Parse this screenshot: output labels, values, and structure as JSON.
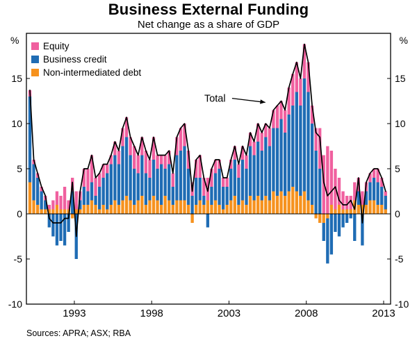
{
  "title": "Business External Funding",
  "subtitle": "Net change as a share of GDP",
  "annotation": {
    "label": "Total"
  },
  "sources": "Sources: APRA; ASX; RBA",
  "axes": {
    "left_unit": "%",
    "right_unit": "%",
    "yticks": [
      -10,
      -5,
      0,
      5,
      10,
      15
    ],
    "ylim": [
      -10,
      20
    ],
    "xticks": [
      1993,
      1998,
      2003,
      2008,
      2013
    ],
    "xtick_labels": [
      "1993",
      "1998",
      "2003",
      "2008",
      "2013"
    ]
  },
  "legend": [
    {
      "label": "Equity",
      "color": "#f0609f"
    },
    {
      "label": "Business credit",
      "color": "#1f6cb4"
    },
    {
      "label": "Non-intermediated debt",
      "color": "#f6921e"
    }
  ],
  "chart_data": {
    "type": "bar",
    "stacked": true,
    "frequency": "quarterly",
    "x_start": 1990.0,
    "x_step": 0.25,
    "xlim": [
      1989.9,
      2013.45
    ],
    "line_overlay": {
      "name": "Total",
      "color": "#000000",
      "note": "sum of stacked series"
    },
    "series": [
      {
        "name": "Equity",
        "color": "#f0609f",
        "values": [
          0.7,
          0.5,
          0.5,
          0.5,
          0.5,
          0.5,
          1.0,
          1.5,
          1.5,
          2.5,
          1.0,
          1.5,
          2.0,
          1.0,
          2.0,
          2.5,
          3.0,
          2.0,
          1.5,
          1.5,
          1.0,
          1.0,
          1.5,
          1.5,
          2.0,
          2.2,
          2.0,
          2.5,
          2.0,
          2.0,
          2.5,
          2.0,
          2.5,
          1.5,
          1.0,
          1.5,
          1.5,
          1.5,
          2.0,
          2.5,
          2.5,
          2.0,
          1.5,
          2.0,
          2.5,
          2.0,
          2.5,
          2.0,
          1.5,
          1.0,
          1.0,
          1.0,
          1.0,
          1.5,
          1.5,
          1.5,
          1.5,
          1.5,
          1.5,
          2.0,
          2.0,
          1.5,
          2.0,
          2.0,
          2.5,
          2.0,
          2.5,
          3.0,
          3.5,
          3.3,
          3.0,
          3.8,
          3.3,
          2.0,
          2.5,
          4.5,
          6.5,
          7.5,
          6.0,
          4.5,
          3.0,
          2.0,
          1.5,
          1.5,
          2.0,
          1.5,
          1.5,
          1.0,
          1.0,
          1.0,
          1.5,
          1.0,
          0.5
        ]
      },
      {
        "name": "Business credit",
        "color": "#1f6cb4",
        "values": [
          9.5,
          4.0,
          3.0,
          2.0,
          1.0,
          -1.5,
          -2.5,
          -3.5,
          -3.0,
          -3.5,
          -2.0,
          2.5,
          -5.0,
          1.0,
          2.0,
          1.5,
          2.0,
          1.0,
          2.5,
          3.0,
          4.0,
          4.5,
          5.0,
          4.5,
          6.0,
          6.5,
          5.0,
          4.0,
          3.0,
          4.5,
          3.5,
          2.5,
          4.0,
          3.5,
          4.5,
          3.0,
          4.0,
          2.0,
          5.0,
          5.5,
          6.0,
          4.0,
          2.0,
          3.0,
          2.5,
          1.0,
          -1.5,
          2.0,
          3.0,
          4.0,
          2.5,
          2.0,
          3.5,
          4.0,
          3.0,
          4.5,
          4.0,
          5.5,
          5.0,
          6.0,
          5.5,
          6.5,
          6.0,
          7.0,
          7.5,
          8.0,
          7.0,
          8.5,
          9.0,
          11.0,
          10.0,
          12.5,
          12.0,
          9.0,
          7.0,
          5.0,
          -2.0,
          -5.0,
          -4.5,
          -2.0,
          -2.5,
          -1.5,
          -1.0,
          -0.5,
          -3.0,
          1.5,
          -3.5,
          1.5,
          2.0,
          2.5,
          2.5,
          2.0,
          1.5
        ]
      },
      {
        "name": "Non-intermediated debt",
        "color": "#f6921e",
        "values": [
          3.5,
          1.5,
          1.0,
          0.5,
          0.5,
          0.5,
          0.5,
          1.0,
          0.5,
          0.5,
          0.5,
          -0.5,
          0.5,
          0.5,
          1.0,
          1.0,
          1.5,
          1.0,
          0.5,
          1.0,
          0.5,
          1.0,
          1.5,
          1.0,
          1.5,
          2.0,
          1.5,
          1.0,
          1.5,
          2.0,
          1.0,
          1.5,
          2.0,
          1.5,
          1.0,
          2.0,
          1.5,
          1.0,
          1.5,
          1.5,
          1.5,
          1.0,
          -1.0,
          1.0,
          1.5,
          1.0,
          1.5,
          1.0,
          1.5,
          1.0,
          0.5,
          1.0,
          1.5,
          2.0,
          1.0,
          1.5,
          1.0,
          2.0,
          1.5,
          2.0,
          1.5,
          2.0,
          1.5,
          2.5,
          2.0,
          2.5,
          2.0,
          2.5,
          3.0,
          2.5,
          2.0,
          2.5,
          1.5,
          1.0,
          -0.5,
          -1.0,
          -1.0,
          -0.5,
          1.0,
          0.5,
          1.0,
          0.5,
          0.5,
          0.5,
          1.5,
          1.0,
          1.0,
          1.0,
          1.5,
          1.5,
          1.0,
          1.0,
          0.5
        ]
      }
    ]
  }
}
